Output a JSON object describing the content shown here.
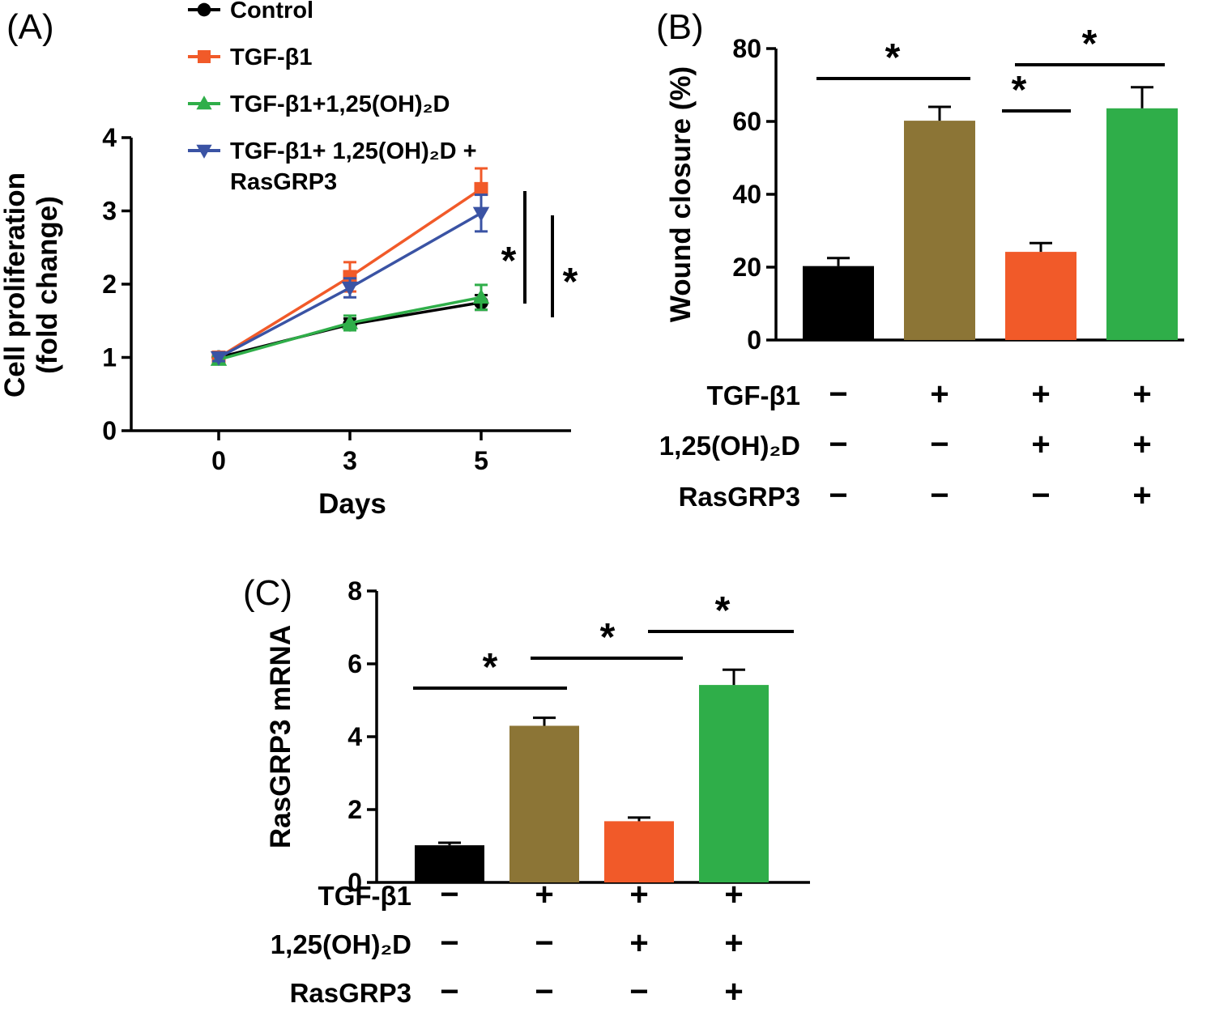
{
  "figure": {
    "background": "#ffffff",
    "accent_colors": {
      "black": "#000000",
      "olive": "#8c7536",
      "orange": "#f15a29",
      "green": "#2fae49",
      "blue": "#3a53a4"
    },
    "panels": [
      {
        "id": "A",
        "label": "(A)",
        "chart_data": {
          "type": "line",
          "xlabel": "Days",
          "ylabel_lines": [
            "Cell proliferation",
            "(fold change)"
          ],
          "x": [
            "0",
            "3",
            "5"
          ],
          "ylim": [
            0,
            4
          ],
          "yticks": [
            0,
            1,
            2,
            3,
            4
          ],
          "grid": false,
          "legend_position": "top-left",
          "series": [
            {
              "name": "Control",
              "marker": "circle",
              "color": "#000000",
              "values": [
                1.0,
                1.45,
                1.75
              ],
              "errors": [
                0.04,
                0.08,
                0.1
              ]
            },
            {
              "name": "TGF-β1",
              "marker": "square",
              "color": "#f15a29",
              "values": [
                1.0,
                2.1,
                3.3
              ],
              "errors": [
                0.05,
                0.2,
                0.28
              ]
            },
            {
              "name": "TGF-β1+1,25(OH)₂D",
              "marker": "triangle-up",
              "color": "#2fae49",
              "values": [
                0.97,
                1.47,
                1.82
              ],
              "errors": [
                0.05,
                0.1,
                0.17
              ]
            },
            {
              "name": "TGF-β1+ 1,25(OH)₂D +\nRasGRP3",
              "marker": "triangle-down",
              "color": "#3a53a4",
              "values": [
                1.0,
                1.95,
                2.97
              ],
              "errors": [
                0.05,
                0.13,
                0.25
              ]
            }
          ],
          "significance_labels": [
            "*",
            "*"
          ]
        }
      },
      {
        "id": "B",
        "label": "(B)",
        "chart_data": {
          "type": "bar",
          "ylabel": "Wound closure (%)",
          "ylim": [
            0,
            80
          ],
          "yticks": [
            0,
            20,
            40,
            60,
            80
          ],
          "grid": false,
          "values": [
            20.3,
            60.2,
            24.2,
            63.6
          ],
          "errors": [
            2.2,
            3.8,
            2.4,
            5.8
          ],
          "colors": [
            "#000000",
            "#8c7536",
            "#f15a29",
            "#2fae49"
          ],
          "significance": [
            {
              "between": [
                0,
                1
              ],
              "label": "*"
            },
            {
              "between": [
                1,
                2
              ],
              "label": "*"
            },
            {
              "between": [
                2,
                3
              ],
              "label": "*"
            }
          ],
          "conditions": [
            {
              "label": "TGF-β1",
              "signs": [
                "−",
                "+",
                "+",
                "+"
              ]
            },
            {
              "label": "1,25(OH)₂D",
              "signs": [
                "−",
                "−",
                "+",
                "+"
              ]
            },
            {
              "label": "RasGRP3",
              "signs": [
                "−",
                "−",
                "−",
                "+"
              ]
            }
          ]
        }
      },
      {
        "id": "C",
        "label": "(C)",
        "chart_data": {
          "type": "bar",
          "ylabel": "RasGRP3  mRNA",
          "ylim": [
            0,
            8
          ],
          "yticks": [
            0,
            2,
            4,
            6,
            8
          ],
          "grid": false,
          "values": [
            1.02,
            4.3,
            1.68,
            5.42
          ],
          "errors": [
            0.07,
            0.22,
            0.1,
            0.42
          ],
          "colors": [
            "#000000",
            "#8c7536",
            "#f15a29",
            "#2fae49"
          ],
          "significance": [
            {
              "between": [
                0,
                1
              ],
              "label": "*"
            },
            {
              "between": [
                1,
                2
              ],
              "label": "*"
            },
            {
              "between": [
                2,
                3
              ],
              "label": "*"
            }
          ],
          "conditions": [
            {
              "label": "TGF-β1",
              "signs": [
                "−",
                "+",
                "+",
                "+"
              ]
            },
            {
              "label": "1,25(OH)₂D",
              "signs": [
                "−",
                "−",
                "+",
                "+"
              ]
            },
            {
              "label": "RasGRP3",
              "signs": [
                "−",
                "−",
                "−",
                "+"
              ]
            }
          ]
        }
      }
    ]
  }
}
